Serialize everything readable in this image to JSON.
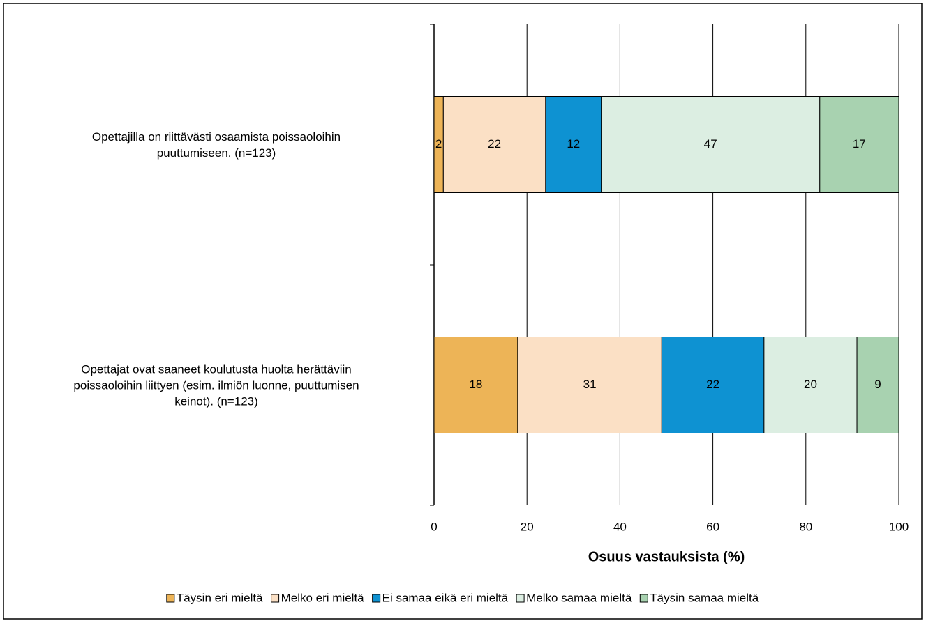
{
  "chart_data": {
    "type": "stacked-barh",
    "categories": [
      "Opettajilla on riittävästi osaamista poissaoloihin\npuuttumiseen. (n=123)",
      "Opettajat ovat saaneet koulutusta huolta herättäviin\npoissaoloihin liittyen (esim. ilmiön luonne, puuttumisen\nkeinot). (n=123)"
    ],
    "series": [
      {
        "name": "Täysin eri mieltä",
        "color": "#EDB457",
        "values": [
          2,
          18
        ]
      },
      {
        "name": "Melko eri mieltä",
        "color": "#FBE0C5",
        "values": [
          22,
          31
        ]
      },
      {
        "name": "Ei samaa eikä eri mieltä",
        "color": "#0E92D2",
        "values": [
          12,
          22
        ]
      },
      {
        "name": "Melko samaa mieltä",
        "color": "#DCEEE2",
        "values": [
          47,
          20
        ]
      },
      {
        "name": "Täysin samaa mieltä",
        "color": "#A8D2B0",
        "values": [
          17,
          9
        ]
      }
    ],
    "xlabel": "Osuus vastauksista (%)",
    "xlim": [
      0,
      100
    ],
    "xticks": [
      0,
      20,
      40,
      60,
      80,
      100
    ],
    "grid": true,
    "legend": "bottom"
  }
}
